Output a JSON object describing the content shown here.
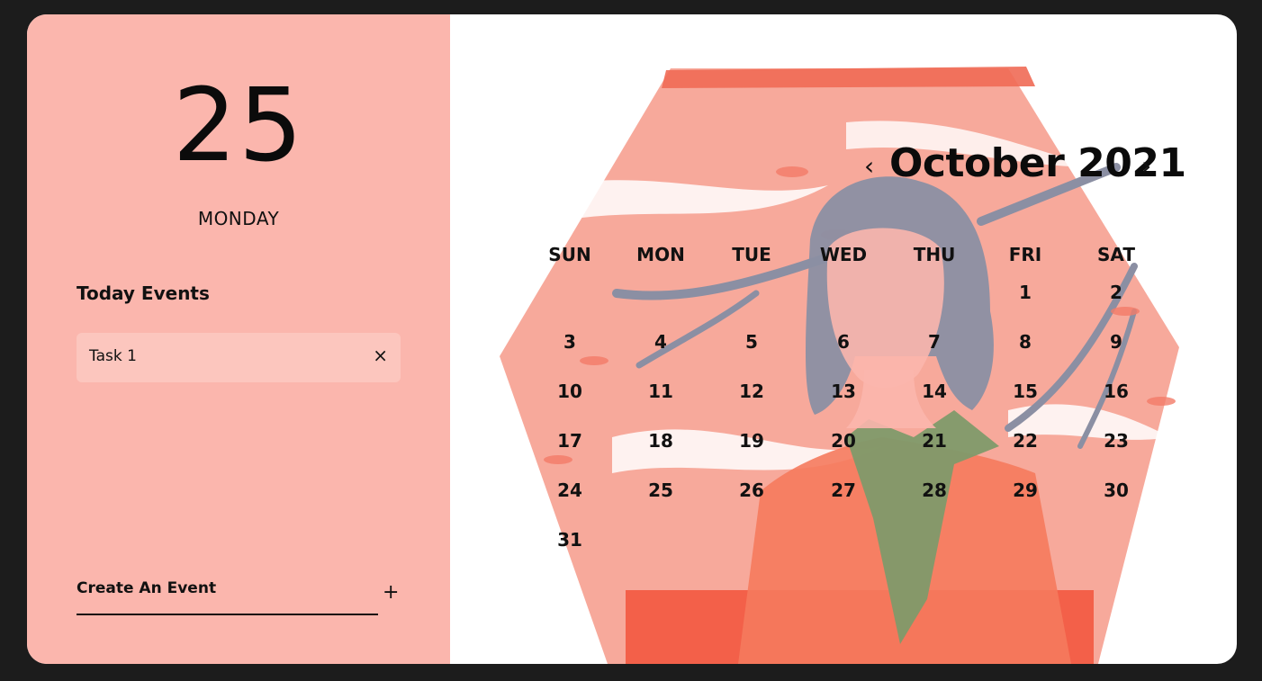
{
  "sidebar": {
    "day_number": "25",
    "weekday": "MONDAY",
    "events_title": "Today Events",
    "events": [
      {
        "label": "Task 1",
        "close": "×"
      }
    ],
    "create_label": "Create An Event",
    "create_plus": "+"
  },
  "calendar": {
    "title": "October 2021",
    "prev": "‹",
    "next": "›",
    "weekdays": [
      "SUN",
      "MON",
      "TUE",
      "WED",
      "THU",
      "FRI",
      "SAT"
    ],
    "days": [
      "1",
      "2",
      "3",
      "4",
      "5",
      "6",
      "7",
      "8",
      "9",
      "10",
      "11",
      "12",
      "13",
      "14",
      "15",
      "16",
      "17",
      "18",
      "19",
      "20",
      "21",
      "22",
      "23",
      "24",
      "25",
      "26",
      "27",
      "28",
      "29",
      "30",
      "31"
    ],
    "first_weekday": "FRI"
  },
  "colors": {
    "sidebar_bg": "#fbb6ad",
    "event_bg": "#fcc6be",
    "page_bg": "#1c1c1c",
    "illustration_salmon": "#f58f80",
    "illustration_red": "#f2533b",
    "illustration_slate": "#8b8fa3",
    "illustration_green": "#7f9a6a"
  },
  "illustration": {
    "description_icon": "woman-portrait-illustration"
  }
}
